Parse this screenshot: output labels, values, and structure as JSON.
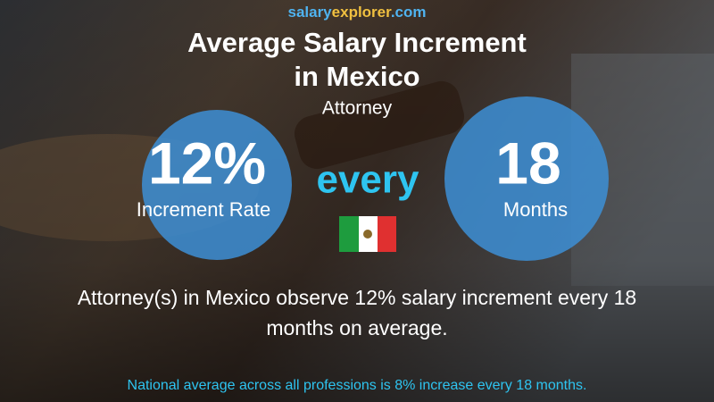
{
  "brand": {
    "parts": [
      "salary",
      "explorer",
      ".com"
    ]
  },
  "header": {
    "title_lines": [
      "Average Salary Increment",
      "in Mexico"
    ],
    "subtitle": "Attorney"
  },
  "left_circle": {
    "value": "12%",
    "label": "Increment Rate"
  },
  "connector": "every",
  "right_circle": {
    "value": "18",
    "label": "Months"
  },
  "description_lines": [
    "Attorney(s) in Mexico observe 12% salary increment every 18",
    "months on average."
  ],
  "footer": "National average across all professions is 8% increase every 18 months."
}
